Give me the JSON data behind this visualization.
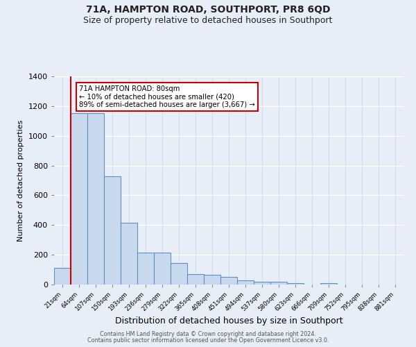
{
  "title": "71A, HAMPTON ROAD, SOUTHPORT, PR8 6QD",
  "subtitle": "Size of property relative to detached houses in Southport",
  "xlabel": "Distribution of detached houses by size in Southport",
  "ylabel": "Number of detached properties",
  "bar_labels": [
    "21sqm",
    "64sqm",
    "107sqm",
    "150sqm",
    "193sqm",
    "236sqm",
    "279sqm",
    "322sqm",
    "365sqm",
    "408sqm",
    "451sqm",
    "494sqm",
    "537sqm",
    "580sqm",
    "623sqm",
    "666sqm",
    "709sqm",
    "752sqm",
    "795sqm",
    "838sqm",
    "881sqm"
  ],
  "bar_heights": [
    110,
    1155,
    1155,
    730,
    415,
    215,
    215,
    145,
    70,
    65,
    50,
    30,
    20,
    20,
    10,
    0,
    10,
    0,
    0,
    0,
    0
  ],
  "bar_color": "#c9d9ed",
  "bar_edge_color": "#6090c0",
  "red_line_x": 1.0,
  "annotation_text": "71A HAMPTON ROAD: 80sqm\n← 10% of detached houses are smaller (420)\n89% of semi-detached houses are larger (3,667) →",
  "annotation_box_color": "#ffffff",
  "annotation_box_edge": "#cc0000",
  "ylim": [
    0,
    1400
  ],
  "yticks": [
    0,
    200,
    400,
    600,
    800,
    1000,
    1200,
    1400
  ],
  "footer1": "Contains HM Land Registry data © Crown copyright and database right 2024.",
  "footer2": "Contains public sector information licensed under the Open Government Licence v3.0.",
  "background_color": "#e8eef8",
  "grid_color": "#d0d8e8",
  "title_fontsize": 10,
  "subtitle_fontsize": 9
}
